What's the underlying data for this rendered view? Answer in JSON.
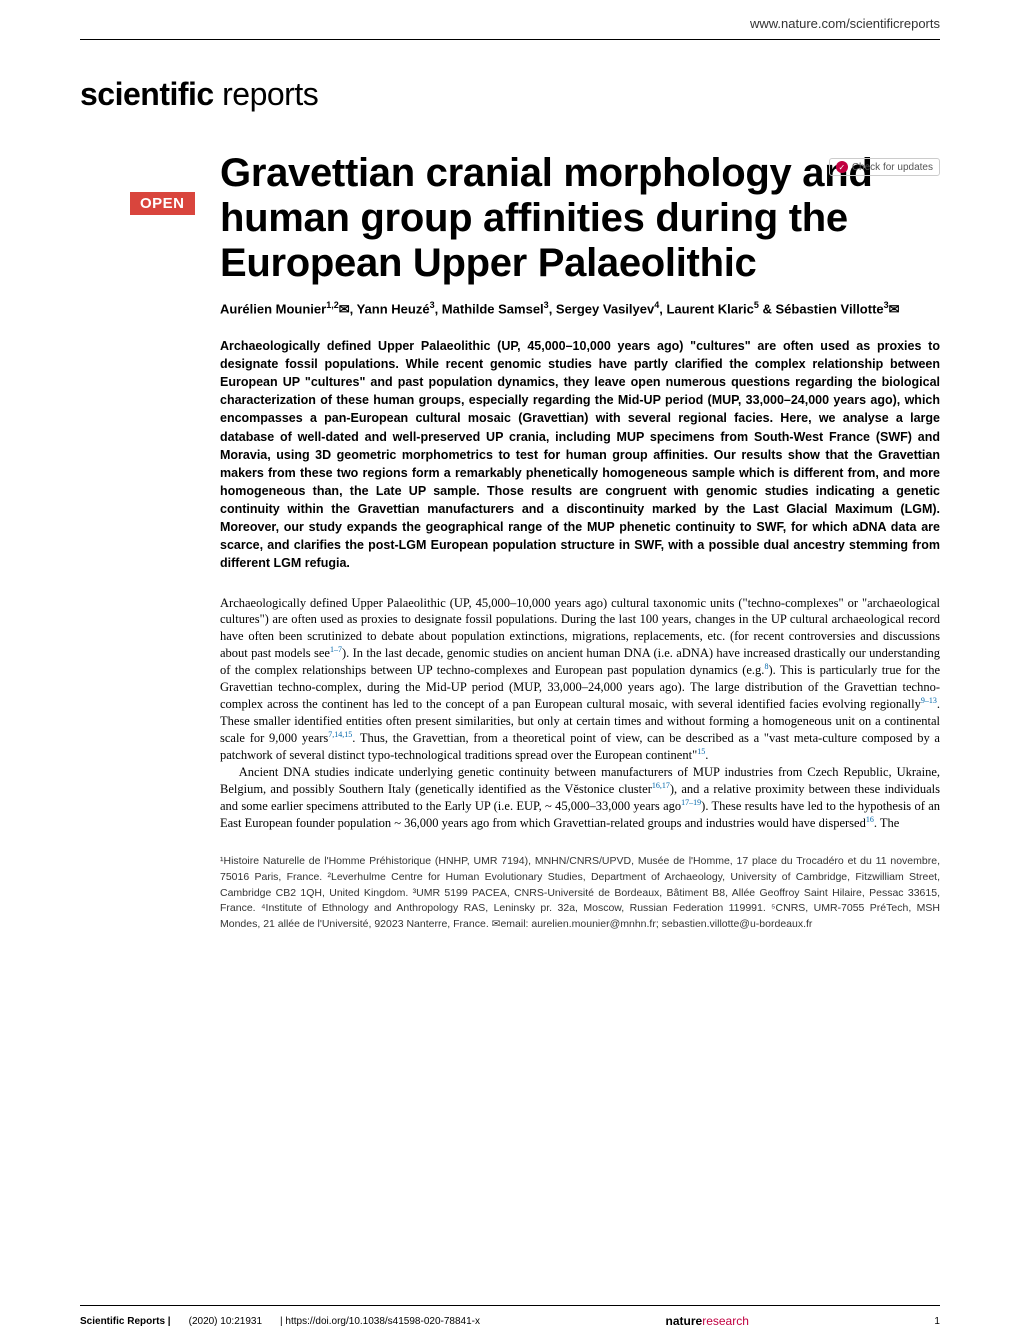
{
  "header": {
    "url": "www.nature.com/scientificreports",
    "journal_bold": "scientific",
    "journal_light": " reports",
    "check_updates": "Check for updates",
    "open_badge": "OPEN"
  },
  "article": {
    "title": "Gravettian cranial morphology and human group affinities during the European Upper Palaeolithic",
    "authors_html": "Aurélien Mounier<sup>1,2</sup>✉, Yann Heuzé<sup>3</sup>, Mathilde Samsel<sup>3</sup>, Sergey Vasilyev<sup>4</sup>, Laurent Klaric<sup>5</sup> & Sébastien Villotte<sup>3</sup>✉",
    "abstract": "Archaeologically defined Upper Palaeolithic (UP, 45,000–10,000 years ago) \"cultures\" are often used as proxies to designate fossil populations. While recent genomic studies have partly clarified the complex relationship between European UP \"cultures\" and past population dynamics, they leave open numerous questions regarding the biological characterization of these human groups, especially regarding the Mid-UP period (MUP, 33,000–24,000 years ago), which encompasses a pan-European cultural mosaic (Gravettian) with several regional facies. Here, we analyse a large database of well-dated and well-preserved UP crania, including MUP specimens from South-West France (SWF) and Moravia, using 3D geometric morphometrics to test for human group affinities. Our results show that the Gravettian makers from these two regions form a remarkably phenetically homogeneous sample which is different from, and more homogeneous than, the Late UP sample. Those results are congruent with genomic studies indicating a genetic continuity within the Gravettian manufacturers and a discontinuity marked by the Last Glacial Maximum (LGM). Moreover, our study expands the geographical range of the MUP phenetic continuity to SWF, for which aDNA data are scarce, and clarifies the post-LGM European population structure in SWF, with a possible dual ancestry stemming from different LGM refugia.",
    "body": {
      "p1": "Archaeologically defined Upper Palaeolithic (UP, 45,000–10,000 years ago) cultural taxonomic units (\"techno-complexes\" or \"archaeological cultures\") are often used as proxies to designate fossil populations. During the last 100 years, changes in the UP cultural archaeological record have often been scrutinized to debate about population extinctions, migrations, replacements, etc. (for recent controversies and discussions about past models see",
      "p1_ref1": "1–7",
      "p1b": "). In the last decade, genomic studies on ancient human DNA (i.e. aDNA) have increased drastically our understanding of the complex relationships between UP techno-complexes and European past population dynamics (e.g.",
      "p1_ref2": "8",
      "p1c": "). This is particularly true for the Gravettian techno-complex, during the Mid-UP period (MUP, 33,000–24,000 years ago). The large distribution of the Gravettian techno-complex across the continent has led to the concept of a pan European cultural mosaic, with several identified facies evolving regionally",
      "p1_ref3": "9–13",
      "p1d": ". These smaller identified entities often present similarities, but only at certain times and without forming a homogeneous unit on a continental scale for 9,000 years",
      "p1_ref4": "7,14,15",
      "p1e": ". Thus, the Gravettian, from a theoretical point of view, can be described as a \"vast meta-culture composed by a patchwork of several distinct typo-technological traditions spread over the European continent\"",
      "p1_ref5": "15",
      "p1f": ".",
      "p2a": "Ancient DNA studies indicate underlying genetic continuity between manufacturers of MUP industries from Czech Republic, Ukraine, Belgium, and possibly Southern Italy (genetically identified as the Věstonice cluster",
      "p2_ref1": "16,17",
      "p2b": "), and a relative proximity between these individuals and some earlier specimens attributed to the Early UP (i.e. EUP, ~ 45,000–33,000 years ago",
      "p2_ref2": "17–19",
      "p2c": "). These results have led to the hypothesis of an East European founder population ~ 36,000 years ago from which Gravettian-related groups and industries would have dispersed",
      "p2_ref3": "16",
      "p2d": ". The"
    },
    "affiliations": "¹Histoire Naturelle de l'Homme Préhistorique (HNHP, UMR 7194), MNHN/CNRS/UPVD, Musée de l'Homme, 17 place du Trocadéro et du 11 novembre, 75016 Paris, France. ²Leverhulme Centre for Human Evolutionary Studies, Department of Archaeology, University of Cambridge, Fitzwilliam Street, Cambridge CB2 1QH, United Kingdom. ³UMR 5199 PACEA, CNRS-Université de Bordeaux, Bâtiment B8, Allée Geoffroy Saint Hilaire, Pessac 33615, France. ⁴Institute of Ethnology and Anthropology RAS, Leninsky pr. 32a, Moscow, Russian Federation 119991. ⁵CNRS, UMR-7055 PréTech, MSH Mondes, 21 allée de l'Université, 92023 Nanterre, France. ✉email: aurelien.mounier@mnhn.fr; sebastien.villotte@u-bordeaux.fr"
  },
  "footer": {
    "journal": "Scientific Reports |",
    "citation": "(2020) 10:21931",
    "doi": "| https://doi.org/10.1038/s41598-020-78841-x",
    "brand_n": "nature",
    "brand_r": "research",
    "page": "1"
  },
  "colors": {
    "accent_red": "#d9453d",
    "nature_pink": "#c00040",
    "link_blue": "#0066aa",
    "text": "#000000",
    "bg": "#ffffff"
  }
}
